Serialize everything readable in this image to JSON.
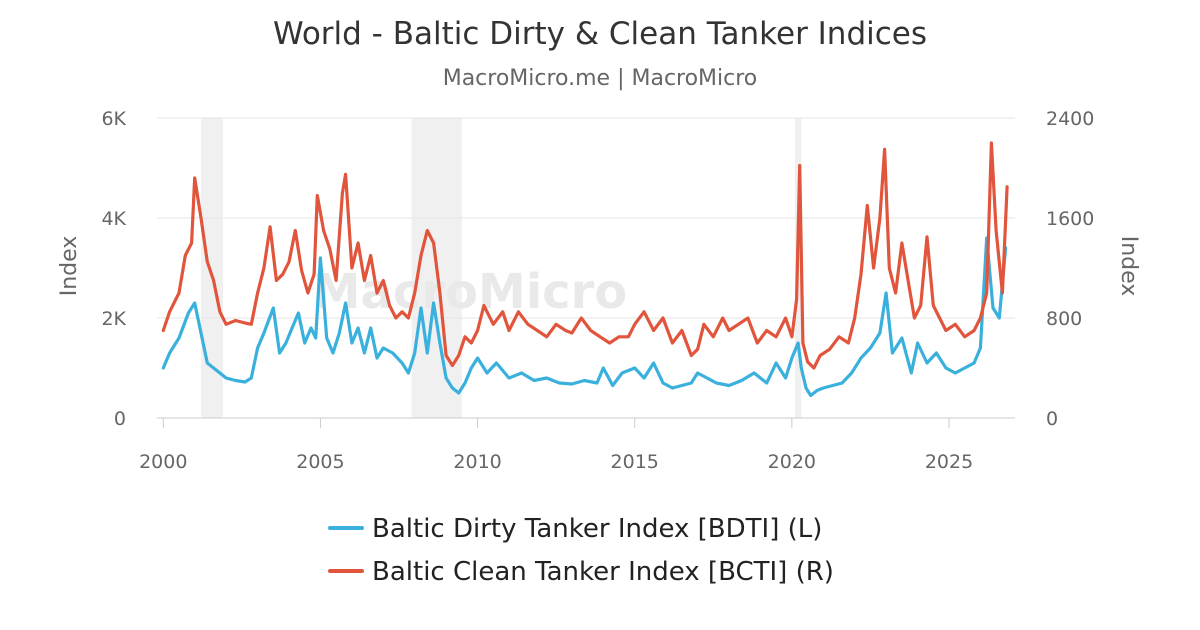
{
  "chart_data": {
    "type": "line",
    "title": "World - Baltic Dirty & Clean Tanker Indices",
    "subtitle": "MacroMicro.me | MacroMicro",
    "watermark": "MacroMicro",
    "x_ticks": [
      "2000",
      "2005",
      "2010",
      "2015",
      "2020",
      "2025"
    ],
    "xlim": [
      1999.8,
      2027.1
    ],
    "left_axis": {
      "label": "Index",
      "ylim": [
        0,
        6000
      ],
      "ticks": [
        "0",
        "2K",
        "4K",
        "6K"
      ]
    },
    "right_axis": {
      "label": "Index",
      "ylim": [
        0,
        2400
      ],
      "ticks": [
        "0",
        "800",
        "1600",
        "2400"
      ]
    },
    "shaded_periods": [
      [
        2001.2,
        2001.9
      ],
      [
        2007.9,
        2009.5
      ],
      [
        2020.1,
        2020.3
      ]
    ],
    "grid": true,
    "legend_position": "bottom",
    "series": [
      {
        "name": "Baltic Dirty Tanker Index [BDTI] (L)",
        "axis": "left",
        "color": "#3ab0dd",
        "x": [
          2000.0,
          2000.2,
          2000.5,
          2000.8,
          2001.0,
          2001.2,
          2001.4,
          2001.6,
          2001.8,
          2002.0,
          2002.3,
          2002.6,
          2002.8,
          2003.0,
          2003.2,
          2003.5,
          2003.7,
          2003.9,
          2004.1,
          2004.3,
          2004.5,
          2004.7,
          2004.85,
          2005.0,
          2005.2,
          2005.4,
          2005.6,
          2005.8,
          2006.0,
          2006.2,
          2006.4,
          2006.6,
          2006.8,
          2007.0,
          2007.3,
          2007.6,
          2007.8,
          2008.0,
          2008.2,
          2008.4,
          2008.6,
          2008.8,
          2009.0,
          2009.2,
          2009.4,
          2009.6,
          2009.8,
          2010.0,
          2010.3,
          2010.6,
          2011.0,
          2011.4,
          2011.8,
          2012.2,
          2012.6,
          2013.0,
          2013.4,
          2013.8,
          2014.0,
          2014.3,
          2014.6,
          2015.0,
          2015.3,
          2015.6,
          2015.9,
          2016.2,
          2016.5,
          2016.8,
          2017.0,
          2017.3,
          2017.6,
          2018.0,
          2018.4,
          2018.8,
          2019.2,
          2019.5,
          2019.8,
          2020.0,
          2020.2,
          2020.3,
          2020.45,
          2020.6,
          2020.8,
          2021.0,
          2021.3,
          2021.6,
          2021.9,
          2022.2,
          2022.5,
          2022.8,
          2023.0,
          2023.2,
          2023.5,
          2023.8,
          2024.0,
          2024.3,
          2024.6,
          2024.9,
          2025.2,
          2025.5,
          2025.8,
          2026.0,
          2026.2,
          2026.4,
          2026.6,
          2026.8
        ],
        "values": [
          1000,
          1300,
          1600,
          2100,
          2300,
          1700,
          1100,
          1000,
          900,
          800,
          750,
          720,
          800,
          1400,
          1700,
          2200,
          1300,
          1500,
          1800,
          2100,
          1500,
          1800,
          1600,
          3200,
          1600,
          1300,
          1700,
          2300,
          1500,
          1800,
          1300,
          1800,
          1200,
          1400,
          1300,
          1100,
          900,
          1300,
          2200,
          1300,
          2300,
          1500,
          800,
          600,
          500,
          700,
          1000,
          1200,
          900,
          1100,
          800,
          900,
          750,
          800,
          700,
          680,
          750,
          700,
          1000,
          650,
          900,
          1000,
          800,
          1100,
          700,
          600,
          650,
          700,
          900,
          800,
          700,
          650,
          750,
          900,
          700,
          1100,
          800,
          1200,
          1500,
          1000,
          600,
          450,
          550,
          600,
          650,
          700,
          900,
          1200,
          1400,
          1700,
          2500,
          1300,
          1600,
          900,
          1500,
          1100,
          1300,
          1000,
          900,
          1000,
          1100,
          1400,
          3600,
          2200,
          2000,
          3400
        ]
      },
      {
        "name": "Baltic Clean Tanker Index [BCTI] (R)",
        "axis": "right",
        "color": "#e0553b",
        "x": [
          2000.0,
          2000.2,
          2000.5,
          2000.7,
          2000.9,
          2001.0,
          2001.2,
          2001.4,
          2001.6,
          2001.8,
          2002.0,
          2002.3,
          2002.6,
          2002.8,
          2003.0,
          2003.2,
          2003.4,
          2003.6,
          2003.8,
          2004.0,
          2004.2,
          2004.4,
          2004.6,
          2004.8,
          2004.9,
          2005.1,
          2005.3,
          2005.5,
          2005.7,
          2005.8,
          2006.0,
          2006.2,
          2006.4,
          2006.6,
          2006.8,
          2007.0,
          2007.2,
          2007.4,
          2007.6,
          2007.8,
          2008.0,
          2008.2,
          2008.4,
          2008.6,
          2008.8,
          2009.0,
          2009.2,
          2009.4,
          2009.6,
          2009.8,
          2010.0,
          2010.2,
          2010.5,
          2010.8,
          2011.0,
          2011.3,
          2011.6,
          2011.9,
          2012.2,
          2012.5,
          2012.8,
          2013.0,
          2013.3,
          2013.6,
          2013.9,
          2014.2,
          2014.5,
          2014.8,
          2015.0,
          2015.3,
          2015.6,
          2015.9,
          2016.2,
          2016.5,
          2016.8,
          2017.0,
          2017.2,
          2017.5,
          2017.8,
          2018.0,
          2018.3,
          2018.6,
          2018.9,
          2019.2,
          2019.5,
          2019.8,
          2020.0,
          2020.15,
          2020.25,
          2020.35,
          2020.5,
          2020.7,
          2020.9,
          2021.2,
          2021.5,
          2021.8,
          2022.0,
          2022.2,
          2022.4,
          2022.6,
          2022.8,
          2022.95,
          2023.1,
          2023.3,
          2023.5,
          2023.7,
          2023.9,
          2024.1,
          2024.3,
          2024.5,
          2024.7,
          2024.9,
          2025.2,
          2025.5,
          2025.8,
          2026.0,
          2026.2,
          2026.35,
          2026.5,
          2026.7,
          2026.85
        ],
        "values": [
          700,
          850,
          1000,
          1300,
          1400,
          1920,
          1600,
          1250,
          1100,
          850,
          750,
          780,
          760,
          750,
          1000,
          1200,
          1530,
          1100,
          1150,
          1250,
          1500,
          1180,
          1000,
          1150,
          1780,
          1500,
          1350,
          1100,
          1800,
          1950,
          1200,
          1400,
          1100,
          1300,
          1000,
          1100,
          900,
          800,
          850,
          800,
          1000,
          1300,
          1500,
          1400,
          1000,
          500,
          420,
          500,
          650,
          600,
          700,
          900,
          750,
          850,
          700,
          850,
          750,
          700,
          650,
          750,
          700,
          680,
          800,
          700,
          650,
          600,
          650,
          650,
          750,
          850,
          700,
          800,
          600,
          700,
          500,
          550,
          750,
          650,
          800,
          700,
          750,
          800,
          600,
          700,
          650,
          800,
          650,
          950,
          2020,
          600,
          450,
          400,
          500,
          550,
          650,
          600,
          800,
          1150,
          1700,
          1200,
          1600,
          2150,
          1200,
          1000,
          1400,
          1100,
          800,
          900,
          1450,
          900,
          800,
          700,
          750,
          650,
          700,
          800,
          1000,
          2200,
          1500,
          1000,
          1850
        ]
      }
    ]
  }
}
